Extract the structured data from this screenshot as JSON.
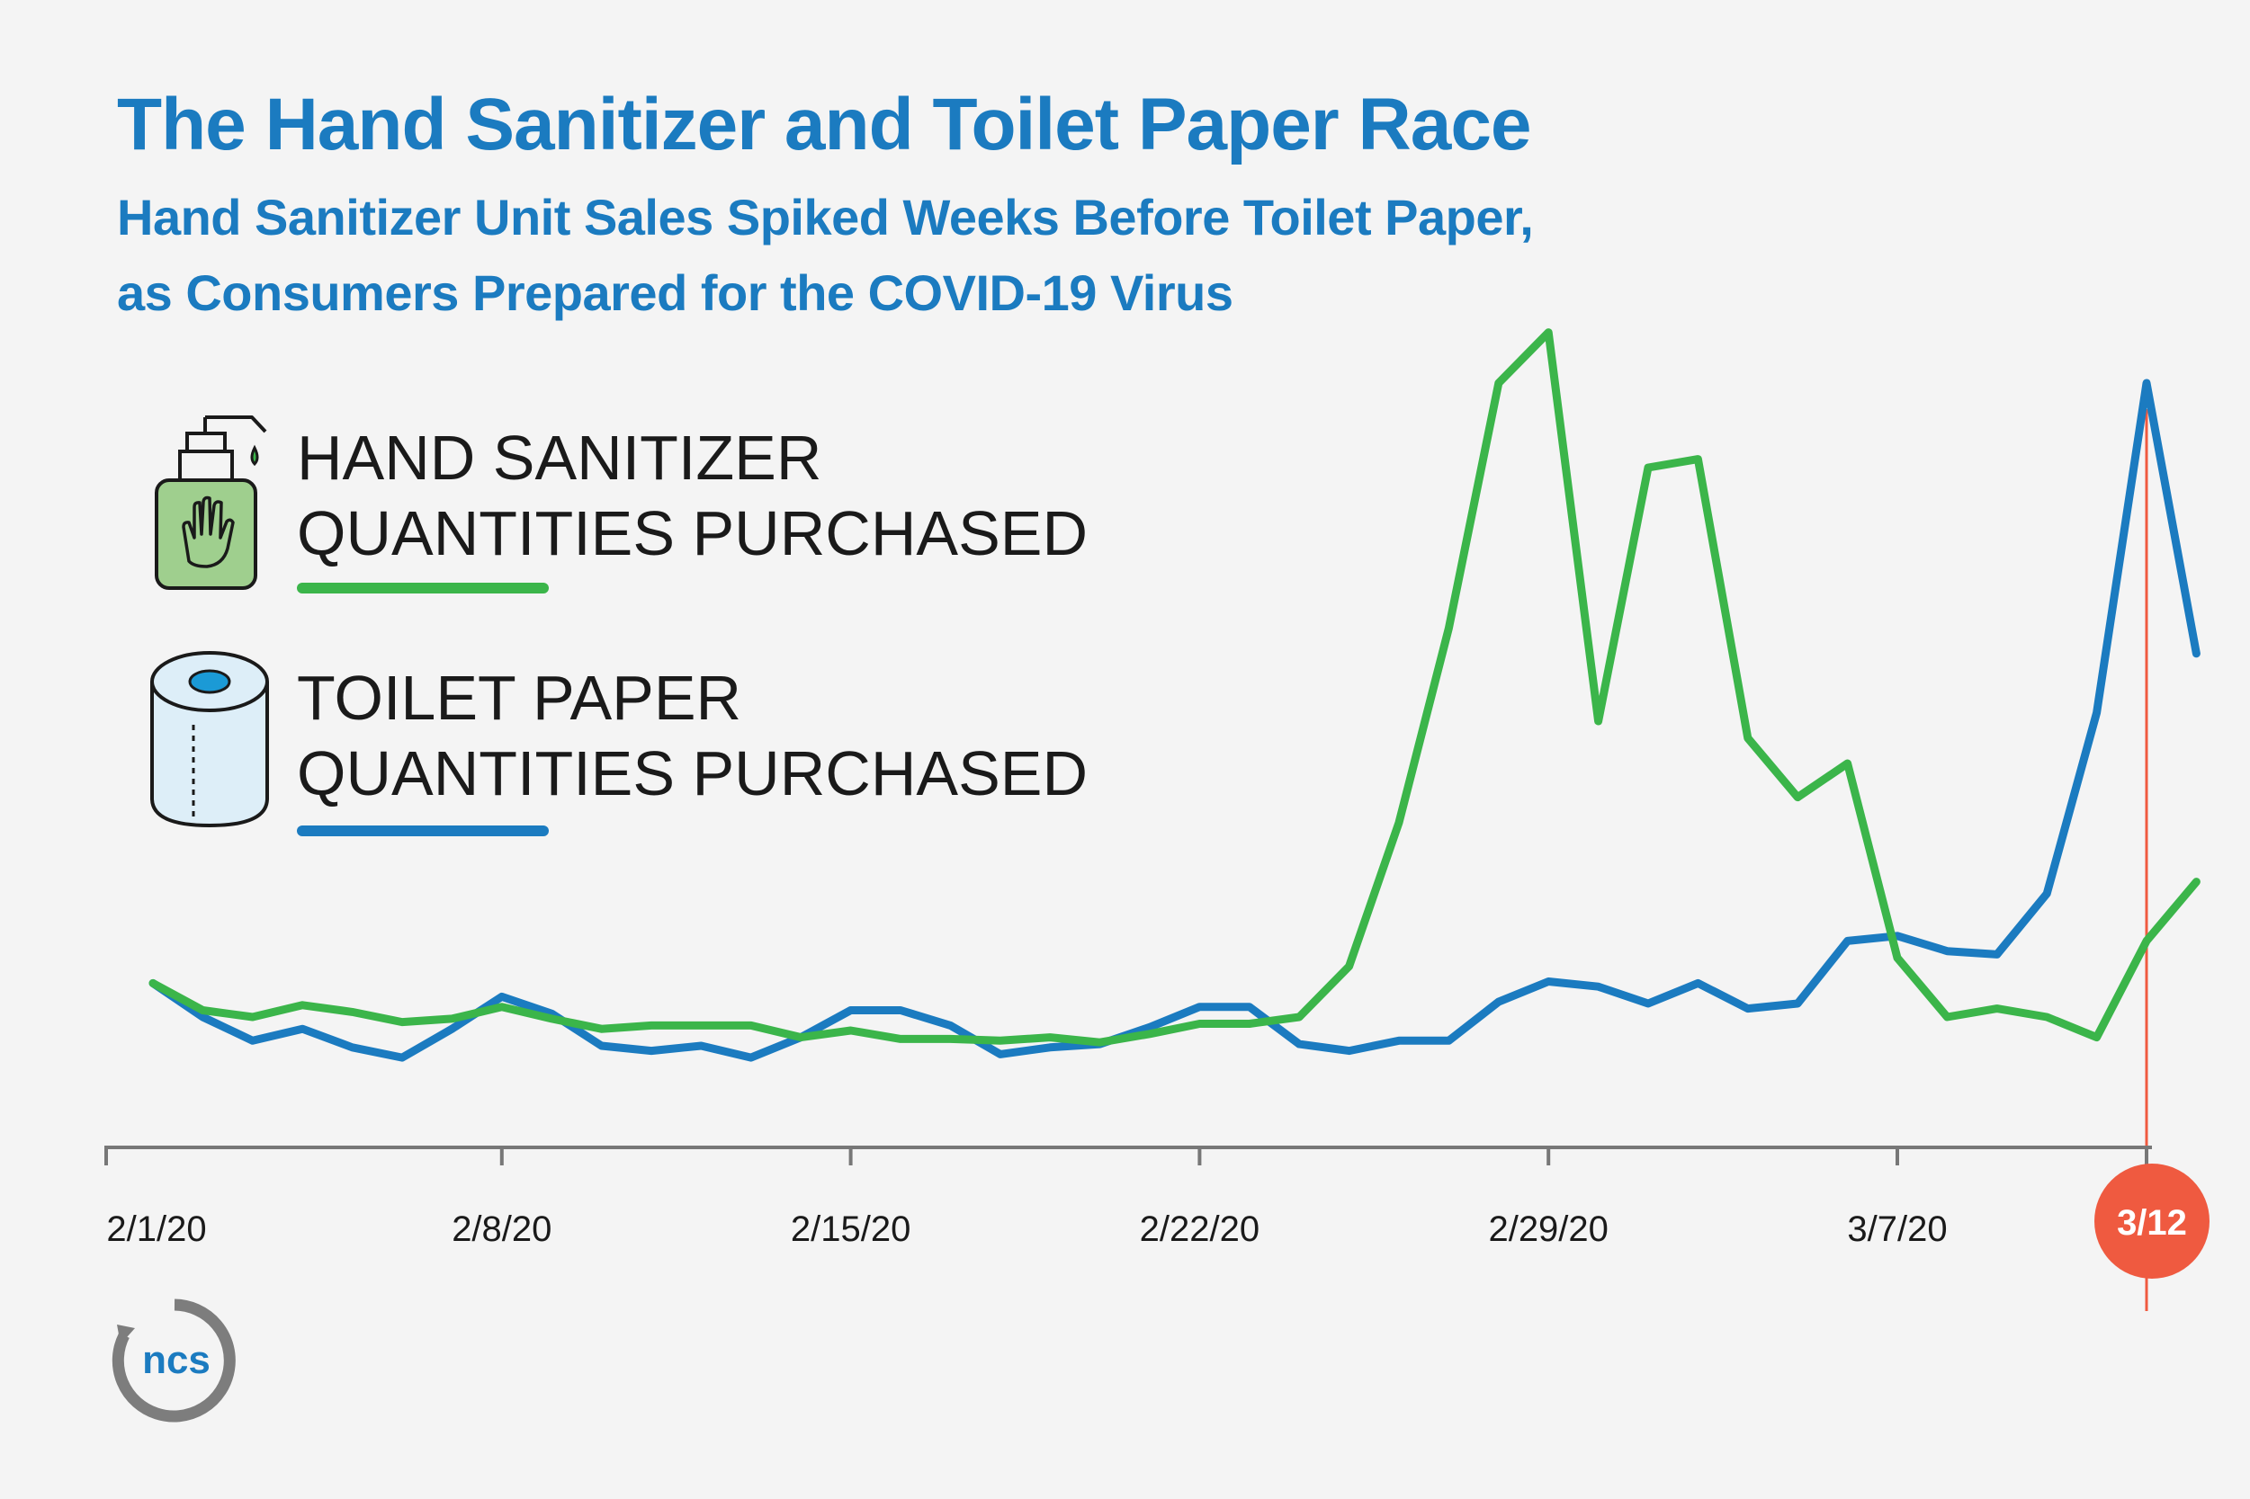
{
  "header": {
    "title": "The Hand Sanitizer and Toilet Paper Race",
    "subtitle_lines": [
      "Hand Sanitizer Unit Sales Spiked Weeks Before Toilet Paper,",
      "as Consumers Prepared for the COVID-19 Virus"
    ]
  },
  "legend": {
    "sanitizer": {
      "line1": "HAND SANITIZER",
      "line2": "QUANTITIES PURCHASED",
      "color": "#3bb54a",
      "icon": "hand-sanitizer-icon"
    },
    "toilet_paper": {
      "line1": "TOILET PAPER",
      "line2": "QUANTITIES PURCHASED",
      "color": "#1b7bc0",
      "icon": "toilet-paper-icon"
    }
  },
  "logo": {
    "text": "ncs"
  },
  "colors": {
    "title": "#1b7bc0",
    "sanitizer": "#3bb54a",
    "toilet_paper": "#1b7bc0",
    "marker": "#ef5a40",
    "axis": "#777777"
  },
  "chart_data": {
    "type": "line",
    "x_start": "2/1/20",
    "x_end": "3/13/20",
    "x_tick_labels": [
      "2/1/20",
      "2/8/20",
      "2/15/20",
      "2/22/20",
      "2/29/20",
      "3/7/20"
    ],
    "highlight": {
      "x": "3/12/20",
      "label": "3/12"
    },
    "y_axis_visible": false,
    "grid": false,
    "legend_position": "top-left",
    "series": [
      {
        "name": "HAND SANITIZER QUANTITIES PURCHASED",
        "color": "#3bb54a",
        "values": [
          95,
          79,
          75,
          82,
          78,
          72,
          74,
          81,
          74,
          68,
          70,
          70,
          70,
          63,
          67,
          62,
          62,
          61,
          63,
          60,
          65,
          71,
          71,
          75,
          105,
          190,
          305,
          450,
          480,
          250,
          400,
          405,
          240,
          205,
          225,
          110,
          75,
          80,
          75,
          63,
          120,
          155
        ]
      },
      {
        "name": "TOILET PAPER QUANTITIES PURCHASED",
        "color": "#1b7bc0",
        "values": [
          95,
          75,
          61,
          68,
          57,
          51,
          68,
          87,
          77,
          58,
          55,
          58,
          51,
          63,
          79,
          79,
          70,
          53,
          57,
          59,
          69,
          81,
          81,
          59,
          55,
          61,
          61,
          84,
          96,
          93,
          83,
          95,
          80,
          83,
          120,
          123,
          114,
          112,
          148,
          255,
          450,
          290
        ]
      }
    ]
  }
}
